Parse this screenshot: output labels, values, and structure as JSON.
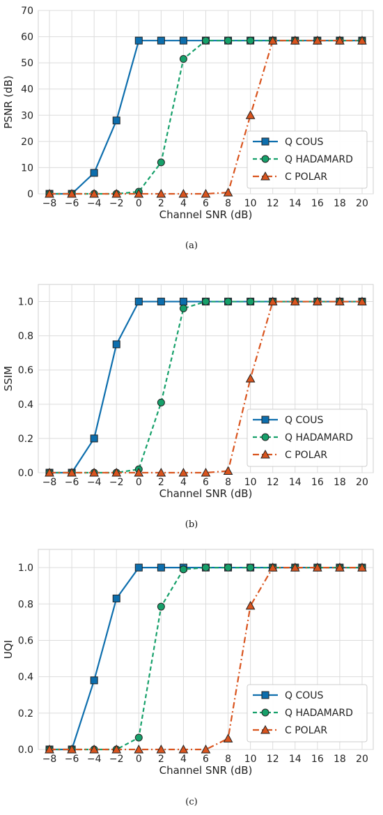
{
  "chart_data": [
    {
      "type": "line",
      "title": "",
      "caption": "(a)",
      "xlabel": "Channel SNR (dB)",
      "ylabel": "PSNR (dB)",
      "xlim": [
        -9,
        21
      ],
      "ylim": [
        0,
        70
      ],
      "xticks": [
        -8,
        -6,
        -4,
        -2,
        0,
        2,
        4,
        6,
        8,
        10,
        12,
        14,
        16,
        18,
        20
      ],
      "xtick_labels": [
        "−8",
        "−6",
        "−4",
        "−2",
        "0",
        "2",
        "4",
        "6",
        "8",
        "10",
        "12",
        "14",
        "16",
        "18",
        "20"
      ],
      "yticks": [
        0,
        10,
        20,
        30,
        40,
        50,
        60,
        70
      ],
      "ytick_labels": [
        "0",
        "10",
        "20",
        "30",
        "40",
        "50",
        "60",
        "70"
      ],
      "grid": true,
      "legend": "lower-right",
      "x": [
        -8,
        -6,
        -4,
        -2,
        0,
        2,
        4,
        6,
        8,
        10,
        12,
        14,
        16,
        18,
        20
      ],
      "series": [
        {
          "name": "Q COUS",
          "color": "#0d6ead",
          "marker": "square",
          "dash": "solid",
          "values": [
            0,
            0,
            8,
            28,
            58.5,
            58.5,
            58.5,
            58.5,
            58.5,
            58.5,
            58.5,
            58.5,
            58.5,
            58.5,
            58.5
          ]
        },
        {
          "name": "Q HADAMARD",
          "color": "#16a06a",
          "marker": "circle",
          "dash": "dashed",
          "values": [
            0,
            0,
            0,
            0,
            0.8,
            12,
            51.5,
            58.5,
            58.5,
            58.5,
            58.5,
            58.5,
            58.5,
            58.5,
            58.5
          ]
        },
        {
          "name": "C POLAR",
          "color": "#d9541e",
          "marker": "triangle",
          "dash": "dashdot",
          "values": [
            0,
            0,
            0,
            0,
            0,
            0,
            0,
            0,
            0.5,
            30,
            58.5,
            58.5,
            58.5,
            58.5,
            58.5
          ]
        }
      ]
    },
    {
      "type": "line",
      "title": "",
      "caption": "(b)",
      "xlabel": "Channel SNR (dB)",
      "ylabel": "SSIM",
      "xlim": [
        -9,
        21
      ],
      "ylim": [
        0,
        1.1
      ],
      "xticks": [
        -8,
        -6,
        -4,
        -2,
        0,
        2,
        4,
        6,
        8,
        10,
        12,
        14,
        16,
        18,
        20
      ],
      "xtick_labels": [
        "−8",
        "−6",
        "−4",
        "−2",
        "0",
        "2",
        "4",
        "6",
        "8",
        "10",
        "12",
        "14",
        "16",
        "18",
        "20"
      ],
      "yticks": [
        0,
        0.2,
        0.4,
        0.6,
        0.8,
        1.0
      ],
      "ytick_labels": [
        "0.0",
        "0.2",
        "0.4",
        "0.6",
        "0.8",
        "1.0"
      ],
      "grid": true,
      "legend": "lower-right",
      "x": [
        -8,
        -6,
        -4,
        -2,
        0,
        2,
        4,
        6,
        8,
        10,
        12,
        14,
        16,
        18,
        20
      ],
      "series": [
        {
          "name": "Q COUS",
          "color": "#0d6ead",
          "marker": "square",
          "dash": "solid",
          "values": [
            0,
            0,
            0.2,
            0.75,
            1,
            1,
            1,
            1,
            1,
            1,
            1,
            1,
            1,
            1,
            1
          ]
        },
        {
          "name": "Q HADAMARD",
          "color": "#16a06a",
          "marker": "circle",
          "dash": "dashed",
          "values": [
            0,
            0,
            0,
            0,
            0.02,
            0.41,
            0.96,
            1,
            1,
            1,
            1,
            1,
            1,
            1,
            1
          ]
        },
        {
          "name": "C POLAR",
          "color": "#d9541e",
          "marker": "triangle",
          "dash": "dashdot",
          "values": [
            0,
            0,
            0,
            0,
            0,
            0,
            0,
            0,
            0.01,
            0.55,
            1,
            1,
            1,
            1,
            1
          ]
        }
      ]
    },
    {
      "type": "line",
      "title": "",
      "caption": "(c)",
      "xlabel": "Channel SNR (dB)",
      "ylabel": "UQI",
      "xlim": [
        -9,
        21
      ],
      "ylim": [
        0,
        1.1
      ],
      "xticks": [
        -8,
        -6,
        -4,
        -2,
        0,
        2,
        4,
        6,
        8,
        10,
        12,
        14,
        16,
        18,
        20
      ],
      "xtick_labels": [
        "−8",
        "−6",
        "−4",
        "−2",
        "0",
        "2",
        "4",
        "6",
        "8",
        "10",
        "12",
        "14",
        "16",
        "18",
        "20"
      ],
      "yticks": [
        0,
        0.2,
        0.4,
        0.6,
        0.8,
        1.0
      ],
      "ytick_labels": [
        "0.0",
        "0.2",
        "0.4",
        "0.6",
        "0.8",
        "1.0"
      ],
      "grid": true,
      "legend": "lower-right",
      "x": [
        -8,
        -6,
        -4,
        -2,
        0,
        2,
        4,
        6,
        8,
        10,
        12,
        14,
        16,
        18,
        20
      ],
      "series": [
        {
          "name": "Q COUS",
          "color": "#0d6ead",
          "marker": "square",
          "dash": "solid",
          "values": [
            0,
            0,
            0.38,
            0.83,
            1,
            1,
            1,
            1,
            1,
            1,
            1,
            1,
            1,
            1,
            1
          ]
        },
        {
          "name": "Q HADAMARD",
          "color": "#16a06a",
          "marker": "circle",
          "dash": "dashed",
          "values": [
            0,
            0,
            0,
            0,
            0.065,
            0.785,
            0.99,
            1,
            1,
            1,
            1,
            1,
            1,
            1,
            1
          ]
        },
        {
          "name": "C POLAR",
          "color": "#d9541e",
          "marker": "triangle",
          "dash": "dashdot",
          "values": [
            0,
            0,
            0,
            0,
            0,
            0,
            0,
            0,
            0.06,
            0.79,
            1,
            1,
            1,
            1,
            1
          ]
        }
      ]
    }
  ]
}
